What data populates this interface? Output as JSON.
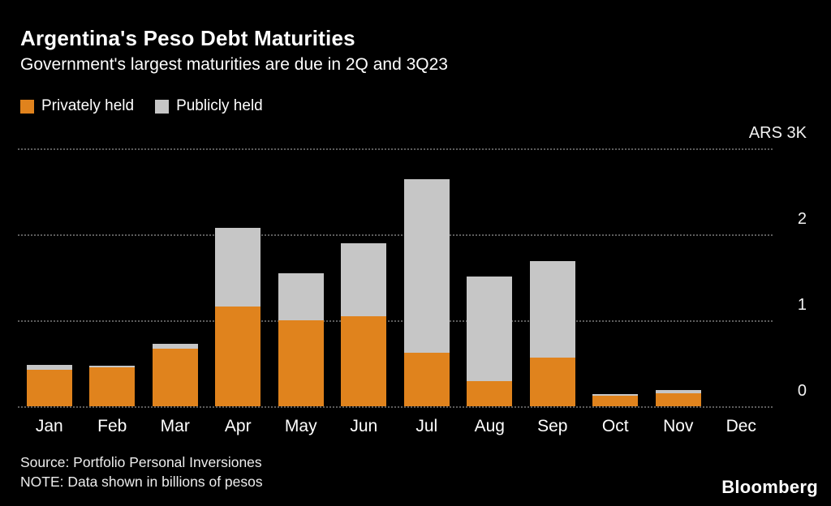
{
  "header": {
    "title": "Argentina's Peso Debt Maturities",
    "subtitle": "Government's largest maturities are due in 2Q and 3Q23"
  },
  "legend": [
    {
      "label": "Privately held",
      "color": "#E0831D"
    },
    {
      "label": "Publicly held",
      "color": "#C6C6C6"
    }
  ],
  "chart_data": {
    "type": "bar",
    "stacked": true,
    "categories": [
      "Jan",
      "Feb",
      "Mar",
      "Apr",
      "May",
      "Jun",
      "Jul",
      "Aug",
      "Sep",
      "Oct",
      "Nov",
      "Dec"
    ],
    "series": [
      {
        "name": "Privately held",
        "color": "#E0831D",
        "values": [
          420,
          450,
          670,
          1160,
          1000,
          1050,
          620,
          290,
          570,
          120,
          150,
          0
        ]
      },
      {
        "name": "Publicly held",
        "color": "#C6C6C6",
        "values": [
          60,
          20,
          60,
          920,
          550,
          850,
          2020,
          1220,
          1120,
          20,
          40,
          0
        ]
      }
    ],
    "unit": "billions of pesos",
    "ylim": [
      0,
      3000
    ],
    "yticks": [
      {
        "value": 3000,
        "label": "ARS 3K"
      },
      {
        "value": 2000,
        "label": "2"
      },
      {
        "value": 1000,
        "label": "1"
      },
      {
        "value": 0,
        "label": "0"
      }
    ],
    "grid": "horizontal dotted",
    "legend_position": "top-left"
  },
  "footer": {
    "source": "Source: Portfolio Personal Inversiones",
    "note": "NOTE: Data shown in billions of pesos",
    "logo": "Bloomberg"
  }
}
